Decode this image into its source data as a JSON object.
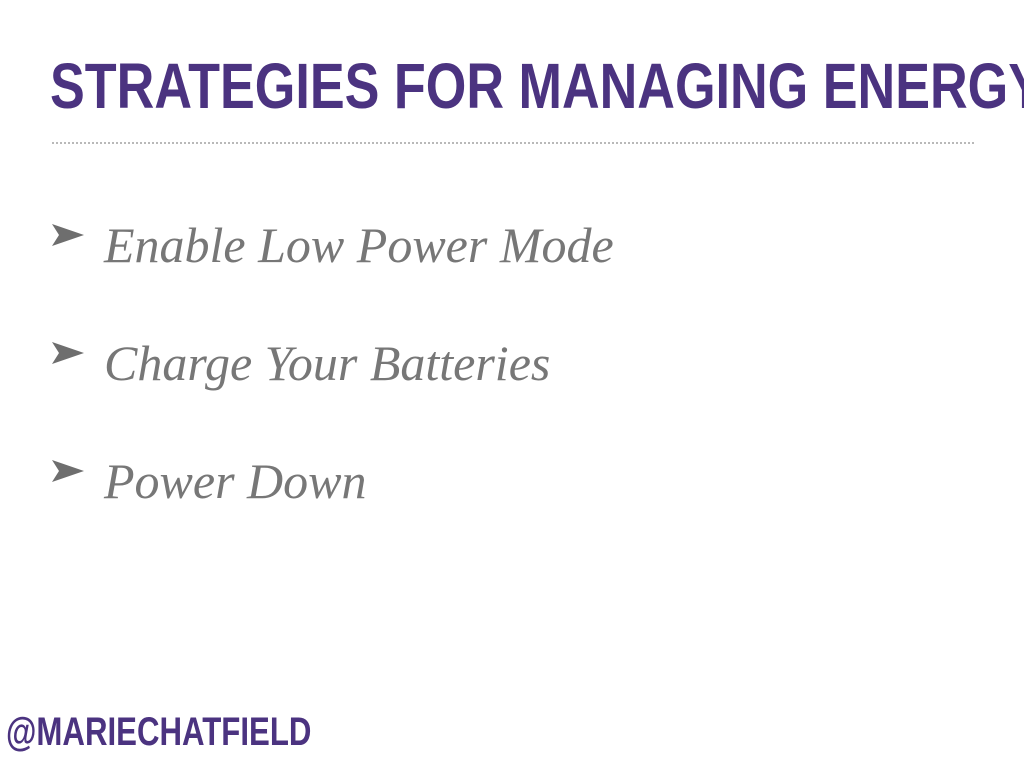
{
  "slide": {
    "title": "STRATEGIES FOR MANAGING ENERGY",
    "bullets": [
      {
        "icon": "arrowhead-bullet-icon",
        "text": "Enable Low Power Mode"
      },
      {
        "icon": "arrowhead-bullet-icon",
        "text": "Charge Your Batteries"
      },
      {
        "icon": "arrowhead-bullet-icon",
        "text": "Power Down"
      }
    ],
    "handle": "@MARIECHATFIELD"
  },
  "colors": {
    "accent": "#4b3380",
    "bullet_text": "#777777",
    "bullet_icon": "#6e6e6e",
    "rule": "#b9b9b9",
    "background": "#ffffff"
  }
}
